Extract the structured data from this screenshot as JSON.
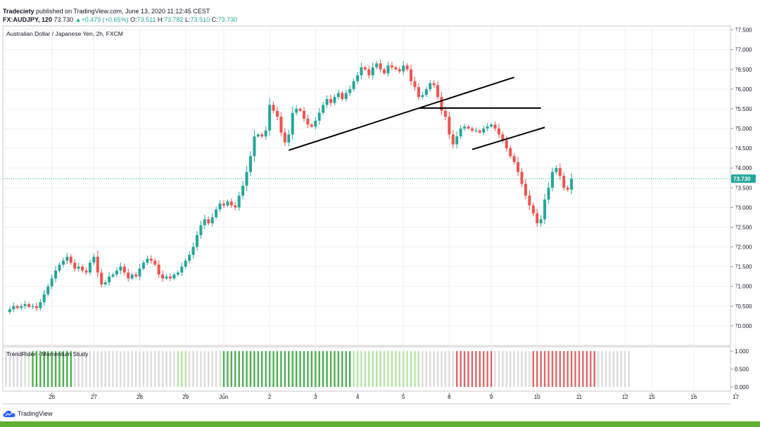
{
  "header": {
    "author": "Tradeciety",
    "published": " published on TradingView.com, June 13, 2020 11:12:45 CEST",
    "symbol": "FX:AUDJPY, 120",
    "last": "73.730",
    "change": "+0.479 (+0.65%)",
    "o_label": "O:",
    "o": "73.511",
    "h_label": "H:",
    "h": "73.782",
    "l_label": "L:",
    "l": "73.510",
    "c_label": "C:",
    "c": "73.730"
  },
  "footer": {
    "brand": "TradingView"
  },
  "colors": {
    "up": "#26a69a",
    "down": "#ef5350",
    "price_line": "#26a69a",
    "footer_bar": "#5eb031"
  },
  "chart_data": [
    {
      "type": "candlestick",
      "title": "Australian Dollar / Japanese Yen, 2h, FXCM",
      "ylim": [
        69.5,
        77.6
      ],
      "y_ticks": [
        "77.500",
        "77.000",
        "76.500",
        "76.000",
        "75.500",
        "75.000",
        "74.500",
        "74.000",
        "73.500",
        "73.000",
        "72.500",
        "72.000",
        "71.500",
        "71.000",
        "70.500",
        "70.000"
      ],
      "x_ticks": [
        "26",
        "27",
        "28",
        "29",
        "Jun",
        "2",
        "3",
        "4",
        "5",
        "8",
        "9",
        "10",
        "11",
        "12",
        "15",
        "16",
        "17"
      ],
      "last_price_label": "73.730",
      "grid": true,
      "anchors": [
        {
          "tick": "26",
          "i": 5
        },
        {
          "tick": "27",
          "i": 16
        },
        {
          "tick": "28",
          "i": 28
        },
        {
          "tick": "29",
          "i": 40
        },
        {
          "tick": "Jun",
          "i": 50
        },
        {
          "tick": "2",
          "i": 62
        },
        {
          "tick": "3",
          "i": 74
        },
        {
          "tick": "4",
          "i": 85
        },
        {
          "tick": "5",
          "i": 97
        },
        {
          "tick": "8",
          "i": 109
        },
        {
          "tick": "9",
          "i": 120
        },
        {
          "tick": "10",
          "i": 132
        },
        {
          "tick": "11",
          "i": 143
        },
        {
          "tick": "12",
          "i": 155
        }
      ],
      "close_path": [
        70.35,
        70.42,
        70.5,
        70.45,
        70.5,
        70.55,
        70.48,
        70.5,
        70.45,
        70.6,
        70.8,
        71.0,
        71.2,
        71.4,
        71.55,
        71.65,
        71.75,
        71.6,
        71.45,
        71.5,
        71.4,
        71.35,
        71.6,
        71.75,
        71.35,
        71.05,
        71.1,
        71.25,
        71.3,
        71.4,
        71.5,
        71.35,
        71.2,
        71.3,
        71.25,
        71.45,
        71.6,
        71.7,
        71.65,
        71.55,
        71.3,
        71.2,
        71.25,
        71.2,
        71.3,
        71.35,
        71.5,
        71.65,
        71.8,
        72.0,
        72.3,
        72.55,
        72.7,
        72.6,
        72.75,
        72.95,
        73.1,
        73.05,
        73.15,
        73.05,
        73.0,
        73.3,
        73.55,
        73.9,
        74.3,
        74.8,
        74.85,
        74.8,
        74.95,
        75.6,
        75.45,
        75.3,
        74.9,
        74.65,
        74.85,
        75.4,
        75.5,
        75.45,
        75.25,
        75.1,
        75.05,
        75.2,
        75.4,
        75.6,
        75.75,
        75.65,
        75.8,
        75.9,
        75.75,
        75.9,
        76.0,
        76.2,
        76.35,
        76.55,
        76.5,
        76.35,
        76.55,
        76.65,
        76.5,
        76.4,
        76.6,
        76.55,
        76.5,
        76.45,
        76.6,
        76.5,
        76.2,
        76.05,
        75.8,
        75.85,
        76.0,
        76.15,
        76.1,
        75.8,
        75.45,
        75.3,
        74.85,
        74.6,
        74.8,
        75.0,
        75.05,
        75.0,
        74.95,
        74.95,
        74.9,
        75.0,
        75.05,
        75.1,
        75.0,
        74.85,
        74.7,
        74.5,
        74.3,
        74.15,
        73.9,
        73.6,
        73.3,
        73.05,
        72.85,
        72.6,
        72.7,
        73.2,
        73.5,
        73.9,
        74.0,
        73.8,
        73.5,
        73.45,
        73.73
      ],
      "drawings": [
        {
          "type": "trendline",
          "from": {
            "i": 74,
            "y": 74.45
          },
          "to": {
            "i": 133,
            "y": 76.3
          }
        },
        {
          "type": "horizontal",
          "from": {
            "i": 108,
            "y": 75.52
          },
          "to": {
            "i": 140,
            "y": 75.52
          }
        },
        {
          "type": "trendline",
          "from": {
            "i": 122,
            "y": 74.47
          },
          "to": {
            "i": 141,
            "y": 75.03
          }
        }
      ]
    },
    {
      "type": "heatmap",
      "title": "TrendRider - Momentum Study",
      "ylim": [
        0,
        1
      ],
      "y_ticks": [
        "1.000",
        "0.500",
        "0.000"
      ],
      "segments": [
        {
          "from": 0,
          "to": 6,
          "state": "neutral"
        },
        {
          "from": 7,
          "to": 17,
          "state": "strong-up"
        },
        {
          "from": 18,
          "to": 44,
          "state": "neutral"
        },
        {
          "from": 45,
          "to": 47,
          "state": "weak-up"
        },
        {
          "from": 48,
          "to": 56,
          "state": "neutral"
        },
        {
          "from": 57,
          "to": 90,
          "state": "strong-up"
        },
        {
          "from": 91,
          "to": 108,
          "state": "weak-up"
        },
        {
          "from": 109,
          "to": 117,
          "state": "neutral"
        },
        {
          "from": 118,
          "to": 127,
          "state": "strong-down"
        },
        {
          "from": 128,
          "to": 137,
          "state": "neutral"
        },
        {
          "from": 138,
          "to": 154,
          "state": "strong-down"
        },
        {
          "from": 155,
          "to": 163,
          "state": "neutral"
        }
      ],
      "state_colors": {
        "strong-up": "#4caf50",
        "weak-up": "#b7e4a6",
        "strong-down": "#e06666",
        "weak-down": "#f4b6b6",
        "neutral": "#dcdcdc"
      }
    }
  ]
}
